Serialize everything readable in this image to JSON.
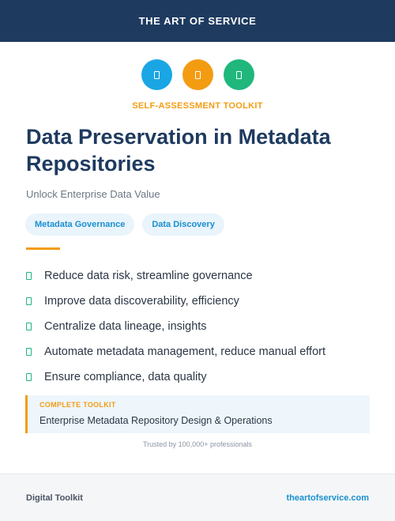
{
  "header": {
    "brand": "THE ART OF SERVICE"
  },
  "icons": [
    {
      "name": "blue-icon",
      "color": "#1aa6e4"
    },
    {
      "name": "orange-icon",
      "color": "#f39c12"
    },
    {
      "name": "green-icon",
      "color": "#1fb77c"
    }
  ],
  "kicker": {
    "text": "SELF-ASSESSMENT TOOLKIT",
    "color": "#f39c12"
  },
  "title": "Data Preservation in Metadata Repositories",
  "subtitle": "Unlock Enterprise Data Value",
  "tags": [
    {
      "label": "Metadata Governance"
    },
    {
      "label": "Data Discovery"
    }
  ],
  "accent_color": "#f39c12",
  "link_color": "#1a8fcf",
  "check_color": "#1fb77c",
  "features": [
    "Reduce data risk, streamline governance",
    "Improve data discoverability, efficiency",
    "Centralize data lineage, insights",
    "Automate metadata management, reduce manual effort",
    "Ensure compliance, data quality"
  ],
  "callout": {
    "label": "COMPLETE TOOLKIT",
    "text": "Enterprise Metadata Repository Design & Operations"
  },
  "trusted": "Trusted by 100,000+ professionals",
  "footer": {
    "left": "Digital Toolkit",
    "right": "theartofservice.com"
  }
}
